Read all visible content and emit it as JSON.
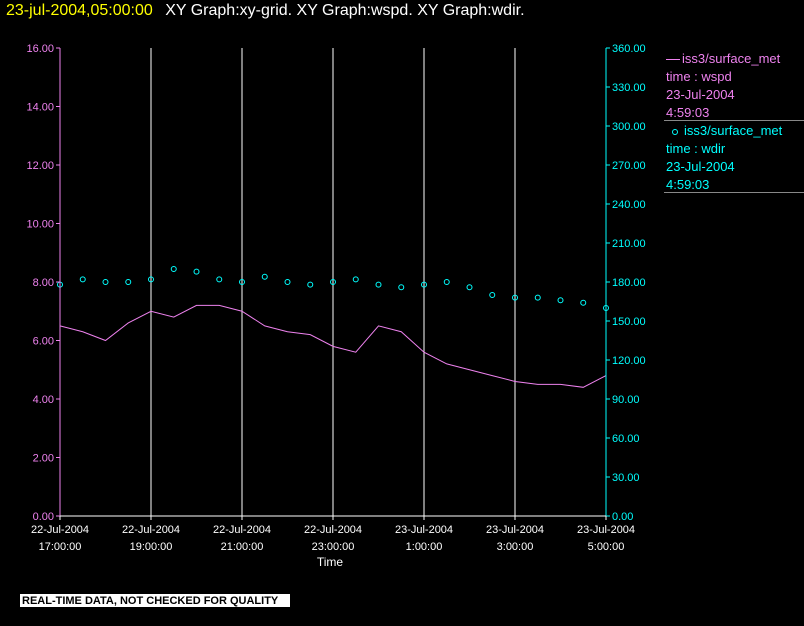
{
  "header": {
    "time": "23-jul-2004,05:00:00",
    "rest": "XY Graph:xy-grid.  XY Graph:wspd.  XY Graph:wdir."
  },
  "legend": {
    "wspd": {
      "name": "iss3/surface_met",
      "field": "time : wspd",
      "date": "23-Jul-2004",
      "time": "4:59:03"
    },
    "wdir": {
      "name": "iss3/surface_met",
      "field": "time : wdir",
      "date": "23-Jul-2004",
      "time": "4:59:03"
    }
  },
  "footer": "REAL-TIME DATA, NOT CHECKED FOR QUALITY",
  "colors": {
    "wspd": "#ee82ee",
    "wdir": "#00ffff",
    "grid": "#ffffff",
    "header_time": "#ffff00"
  },
  "chart_data": {
    "type": "line",
    "xlabel": "Time",
    "x_ticks": [
      [
        "22-Jul-2004",
        "17:00:00"
      ],
      [
        "22-Jul-2004",
        "19:00:00"
      ],
      [
        "22-Jul-2004",
        "21:00:00"
      ],
      [
        "22-Jul-2004",
        "23:00:00"
      ],
      [
        "23-Jul-2004",
        "1:00:00"
      ],
      [
        "23-Jul-2004",
        "3:00:00"
      ],
      [
        "23-Jul-2004",
        "5:00:00"
      ]
    ],
    "xlim_hours": [
      0,
      12
    ],
    "y_left": {
      "ticks": [
        "0.00",
        "2.00",
        "4.00",
        "6.00",
        "8.00",
        "10.00",
        "12.00",
        "14.00",
        "16.00"
      ],
      "ylim": [
        0,
        16
      ]
    },
    "y_right": {
      "ticks": [
        "0.00",
        "30.00",
        "60.00",
        "90.00",
        "120.00",
        "150.00",
        "180.00",
        "210.00",
        "240.00",
        "270.00",
        "300.00",
        "330.00",
        "360.00"
      ],
      "ylim": [
        0,
        360
      ]
    },
    "grid": "vertical",
    "series": [
      {
        "name": "iss3/surface_met",
        "axis": "left",
        "style": "line",
        "x": [
          0,
          0.5,
          1,
          1.5,
          2,
          2.5,
          3,
          3.5,
          4,
          4.5,
          5,
          5.5,
          6,
          6.5,
          7,
          7.5,
          8,
          8.5,
          9,
          9.5,
          10,
          10.5,
          11,
          11.5,
          12
        ],
        "y": [
          6.5,
          6.3,
          6.0,
          6.6,
          7.0,
          6.8,
          7.2,
          7.2,
          7.0,
          6.5,
          6.3,
          6.2,
          5.8,
          5.6,
          6.5,
          6.3,
          5.6,
          5.2,
          5.0,
          4.8,
          4.6,
          4.5,
          4.5,
          4.4,
          4.8
        ]
      },
      {
        "name": "iss3/surface_met",
        "axis": "right",
        "style": "markers",
        "x": [
          0,
          0.5,
          1,
          1.5,
          2,
          2.5,
          3,
          3.5,
          4,
          4.5,
          5,
          5.5,
          6,
          6.5,
          7,
          7.5,
          8,
          8.5,
          9,
          9.5,
          10,
          10.5,
          11,
          11.5,
          12
        ],
        "y": [
          178,
          182,
          180,
          180,
          182,
          190,
          188,
          182,
          180,
          184,
          180,
          178,
          180,
          182,
          178,
          176,
          178,
          180,
          176,
          170,
          168,
          168,
          166,
          164,
          160
        ]
      }
    ]
  }
}
